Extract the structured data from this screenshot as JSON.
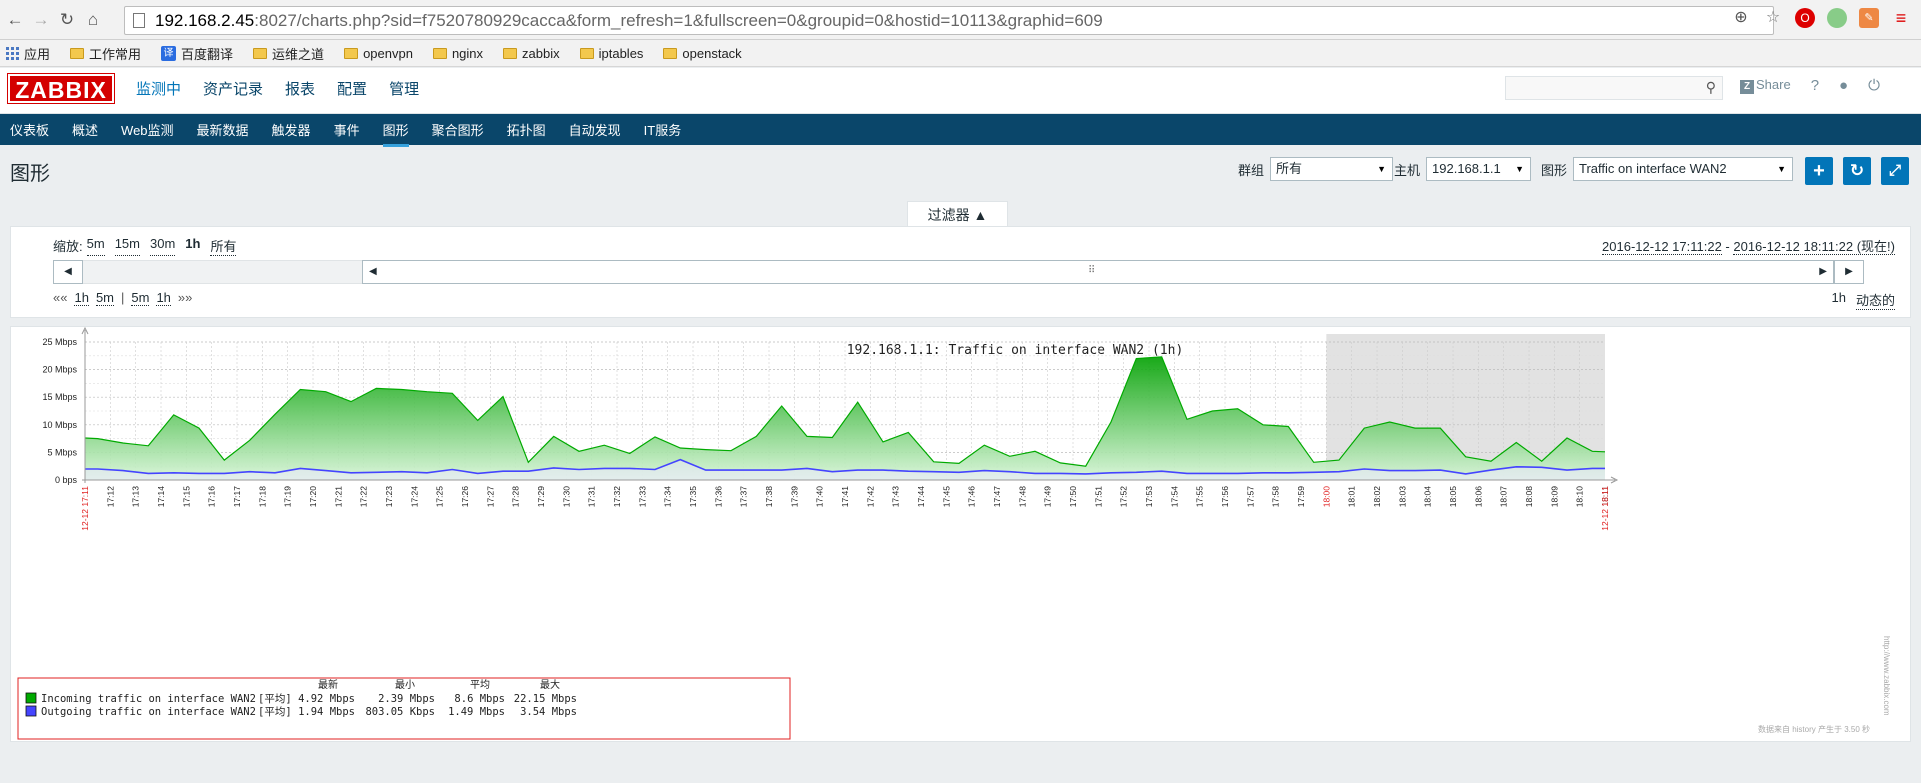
{
  "browser": {
    "url_host": "192.168.2.45",
    "url_rest": ":8027/charts.php?sid=f7520780929cacca&form_refresh=1&fullscreen=0&groupid=0&hostid=10113&graphid=609",
    "bookmarks": [
      "应用",
      "工作常用",
      "百度翻译",
      "运维之道",
      "openvpn",
      "nginx",
      "zabbix",
      "iptables",
      "openstack"
    ]
  },
  "header": {
    "logo": "ZABBIX",
    "menu": [
      "监测中",
      "资产记录",
      "报表",
      "配置",
      "管理"
    ],
    "share": "Share",
    "help": "?"
  },
  "subnav": [
    "仪表板",
    "概述",
    "Web监测",
    "最新数据",
    "触发器",
    "事件",
    "图形",
    "聚合图形",
    "拓扑图",
    "自动发现",
    "IT服务"
  ],
  "page": {
    "title": "图形",
    "group_label": "群组",
    "group_value": "所有",
    "host_label": "主机",
    "host_value": "192.168.1.1",
    "graph_label": "图形",
    "graph_value": "Traffic on interface WAN2"
  },
  "filter": {
    "tab_label": "过滤器 ▲",
    "zoom_label": "缩放:",
    "zoom_options": [
      "5m",
      "15m",
      "30m",
      "1h",
      "所有"
    ],
    "range_from": "2016-12-12 17:11:22",
    "range_sep": " - ",
    "range_to": "2016-12-12 18:11:22 (现在!)",
    "nav_back": "««",
    "nav_back_items": [
      "1h",
      "5m"
    ],
    "nav_sep": "|",
    "nav_fwd_items": [
      "5m",
      "1h"
    ],
    "nav_fwd": "»»",
    "period": "1h",
    "mode": "动态的"
  },
  "chart_data": {
    "type": "area",
    "title": "192.168.1.1: Traffic on interface WAN2 (1h)",
    "ylabel": "",
    "y_ticks": [
      "25 Mbps",
      "20 Mbps",
      "15 Mbps",
      "10 Mbps",
      "5 Mbps",
      "0 bps"
    ],
    "ylim": [
      0,
      25
    ],
    "x_labels": [
      "17:12",
      "17:13",
      "17:14",
      "17:15",
      "17:16",
      "17:17",
      "17:18",
      "17:19",
      "17:20",
      "17:21",
      "17:22",
      "17:23",
      "17:24",
      "17:25",
      "17:26",
      "17:27",
      "17:28",
      "17:29",
      "17:30",
      "17:31",
      "17:32",
      "17:33",
      "17:34",
      "17:35",
      "17:36",
      "17:37",
      "17:38",
      "17:39",
      "17:40",
      "17:41",
      "17:42",
      "17:43",
      "17:44",
      "17:45",
      "17:46",
      "17:47",
      "17:48",
      "17:49",
      "17:50",
      "17:51",
      "17:52",
      "17:53",
      "17:54",
      "17:55",
      "17:56",
      "17:57",
      "17:58",
      "17:59",
      "18:00",
      "18:01",
      "18:02",
      "18:03",
      "18:04",
      "18:05",
      "18:06",
      "18:07",
      "18:08",
      "18:09",
      "18:10",
      "18:11"
    ],
    "x_start_label": "12-12 17:11",
    "x_end_label": "12-12 18:11",
    "x_minutes": [
      0,
      0.5,
      1.5,
      2.5,
      3.5,
      4.5,
      5.5,
      6.5,
      7.5,
      8.5,
      9.5,
      10.5,
      11.5,
      12.5,
      13.5,
      14.5,
      15.5,
      16.5,
      17.5,
      18.5,
      19.5,
      20.5,
      21.5,
      22.5,
      23.5,
      24.5,
      25.5,
      26.5,
      27.5,
      28.5,
      29.5,
      30.5,
      31.5,
      32.5,
      33.5,
      34.5,
      35.5,
      36.5,
      37.5,
      38.5,
      39.5,
      40.5,
      41.5,
      42.5,
      43.5,
      44.5,
      45.5,
      46.5,
      47.5,
      48.5,
      49.5,
      50.5,
      51.5,
      52.5,
      53.5,
      54.5,
      55.5,
      56.5,
      57.5,
      58.5,
      59.5,
      60
    ],
    "series": [
      {
        "name": "Incoming traffic on interface WAN2",
        "color": "#00aa00",
        "values": [
          7.6,
          7.5,
          6.7,
          6.2,
          11.8,
          9.4,
          3.6,
          7.2,
          11.9,
          16.4,
          16.0,
          14.2,
          16.6,
          16.4,
          16.0,
          15.7,
          10.8,
          15.1,
          3.2,
          7.9,
          5.2,
          6.3,
          4.8,
          7.8,
          5.8,
          5.5,
          5.3,
          7.9,
          13.4,
          7.9,
          7.7,
          14.1,
          6.9,
          8.6,
          3.3,
          3.0,
          6.3,
          4.3,
          5.2,
          3.1,
          2.5,
          10.5,
          22.0,
          22.3,
          11.0,
          12.5,
          12.9,
          10.0,
          9.7,
          3.2,
          3.6,
          9.4,
          10.5,
          9.4,
          9.4,
          4.2,
          3.4,
          6.8,
          3.4,
          7.6,
          5.2,
          5.1
        ]
      },
      {
        "name": "Outgoing traffic on interface WAN2",
        "color": "#4444ff",
        "values": [
          2.0,
          2.0,
          1.7,
          1.2,
          1.3,
          1.2,
          1.2,
          1.5,
          1.3,
          2.1,
          1.7,
          1.3,
          1.4,
          1.5,
          1.3,
          1.9,
          1.2,
          1.6,
          1.6,
          2.2,
          1.9,
          2.1,
          2.1,
          1.9,
          3.7,
          1.8,
          1.8,
          1.8,
          1.8,
          2.1,
          1.5,
          1.8,
          1.8,
          1.6,
          1.5,
          1.4,
          1.7,
          1.5,
          1.2,
          1.2,
          1.1,
          1.3,
          1.4,
          1.6,
          1.2,
          1.2,
          1.2,
          1.3,
          1.3,
          1.4,
          1.5,
          2.0,
          1.7,
          1.7,
          1.8,
          1.1,
          1.8,
          2.4,
          2.3,
          1.8,
          2.1,
          2.1
        ]
      }
    ],
    "legend": {
      "headers": [
        "最新",
        "最小",
        "平均",
        "最大"
      ],
      "rows": [
        {
          "name": "Incoming traffic on interface WAN2",
          "func": "[平均]",
          "last": "4.92 Mbps",
          "min": "2.39 Mbps",
          "avg": "8.6 Mbps",
          "max": "22.15 Mbps",
          "color": "#00aa00"
        },
        {
          "name": "Outgoing traffic on interface WAN2",
          "func": "[平均]",
          "last": "1.94 Mbps",
          "min": "803.05 Kbps",
          "avg": "1.49 Mbps",
          "max": "3.54 Mbps",
          "color": "#4444ff"
        }
      ]
    },
    "future_shade_from_label": "18:00",
    "grid": true,
    "legend_placement": "bottom-left",
    "watermark": "http://www.zabbix.com",
    "footer_note": "数据来自 history  产生于 3.50 秒"
  }
}
